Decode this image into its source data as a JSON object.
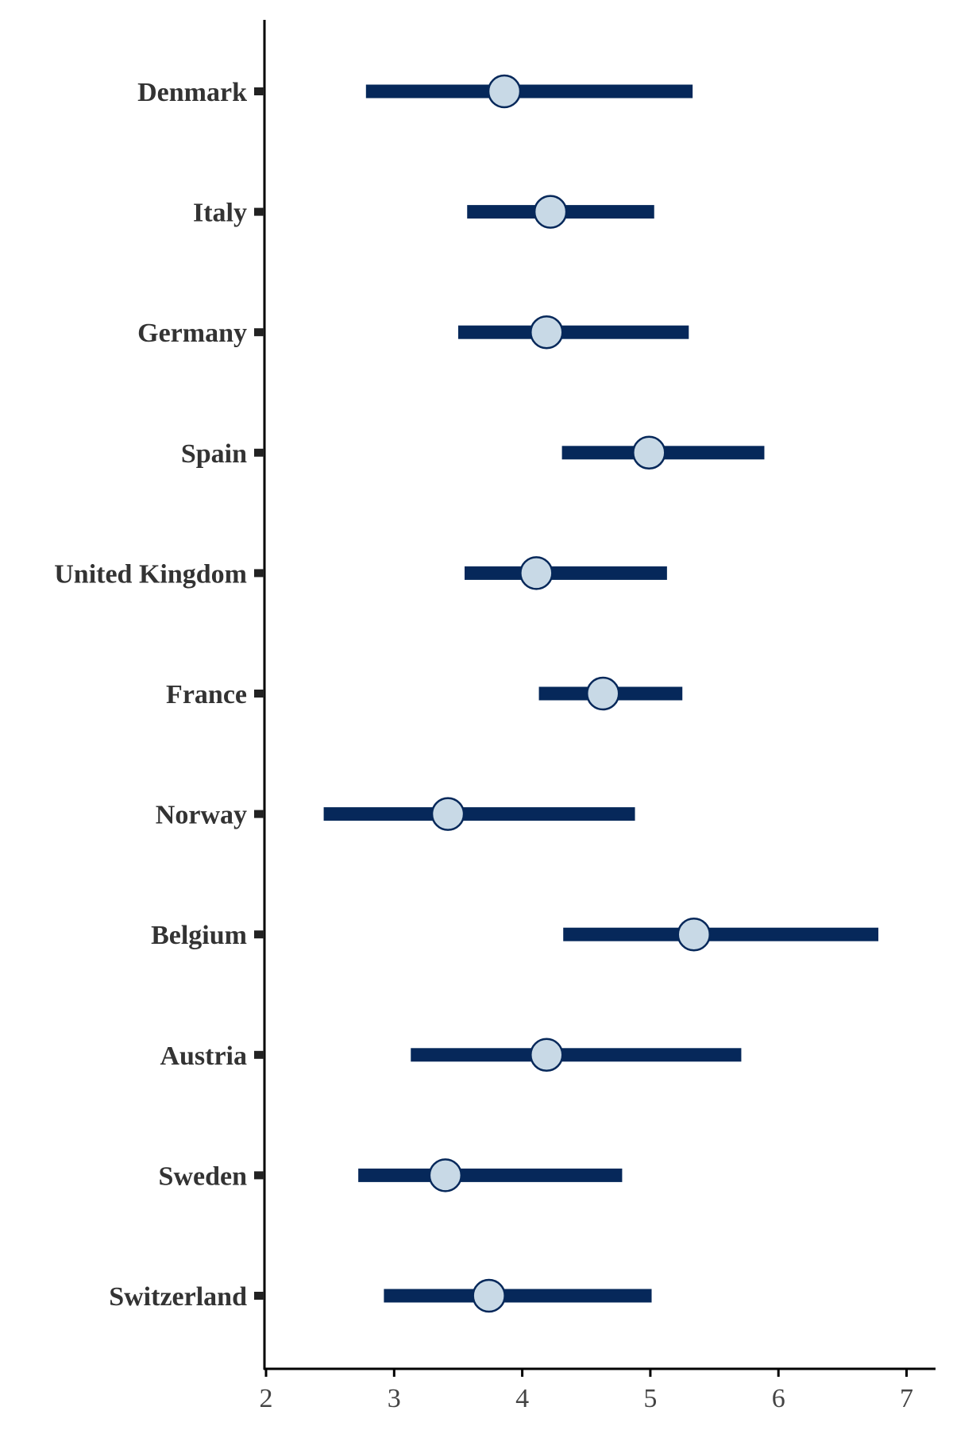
{
  "chart_data": {
    "type": "interval",
    "title": "",
    "xlabel": "",
    "ylabel": "",
    "xlim": [
      2,
      7.2
    ],
    "x_ticks": [
      "2",
      "3",
      "4",
      "5",
      "6",
      "7"
    ],
    "grid": false,
    "categories": [
      "Denmark",
      "Italy",
      "Germany",
      "Spain",
      "United Kingdom",
      "France",
      "Norway",
      "Belgium",
      "Austria",
      "Sweden",
      "Switzerland"
    ],
    "points": [
      {
        "category": "Denmark",
        "estimate": 3.86,
        "low": 2.78,
        "high": 5.33
      },
      {
        "category": "Italy",
        "estimate": 4.22,
        "low": 3.57,
        "high": 5.03
      },
      {
        "category": "Germany",
        "estimate": 4.19,
        "low": 3.5,
        "high": 5.3
      },
      {
        "category": "Spain",
        "estimate": 4.99,
        "low": 4.31,
        "high": 5.89
      },
      {
        "category": "United Kingdom",
        "estimate": 4.11,
        "low": 3.55,
        "high": 5.13
      },
      {
        "category": "France",
        "estimate": 4.63,
        "low": 4.13,
        "high": 5.25
      },
      {
        "category": "Norway",
        "estimate": 3.42,
        "low": 2.45,
        "high": 4.88
      },
      {
        "category": "Belgium",
        "estimate": 5.34,
        "low": 4.32,
        "high": 6.78
      },
      {
        "category": "Austria",
        "estimate": 4.19,
        "low": 3.13,
        "high": 5.71
      },
      {
        "category": "Sweden",
        "estimate": 3.4,
        "low": 2.72,
        "high": 4.78
      },
      {
        "category": "Switzerland",
        "estimate": 3.74,
        "low": 2.92,
        "high": 5.01
      }
    ],
    "colors": {
      "bar": "#06285a",
      "marker_fill": "#c8d9e6",
      "marker_stroke": "#06285a",
      "axis": "#000000"
    }
  }
}
